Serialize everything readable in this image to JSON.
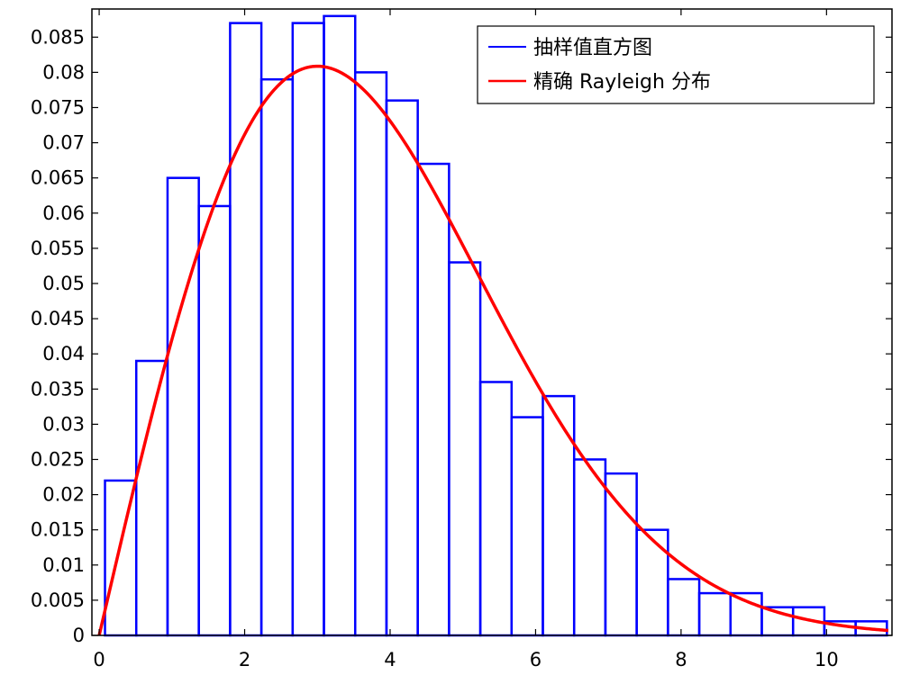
{
  "chart_data": {
    "type": "bar",
    "title": "",
    "xlabel": "",
    "ylabel": "",
    "xlim": [
      -0.1,
      10.9
    ],
    "ylim": [
      0,
      0.089
    ],
    "grid": false,
    "legend_position": "top-right",
    "x_ticks": [
      0,
      2,
      4,
      6,
      8,
      10
    ],
    "x_tick_labels": [
      "0",
      "2",
      "4",
      "6",
      "8",
      "10"
    ],
    "y_ticks": [
      0,
      0.005,
      0.01,
      0.015,
      0.02,
      0.025,
      0.03,
      0.035,
      0.04,
      0.045,
      0.05,
      0.055,
      0.06,
      0.065,
      0.07,
      0.075,
      0.08,
      0.085
    ],
    "y_tick_labels": [
      "0",
      "0.005",
      "0.01",
      "0.015",
      "0.02",
      "0.025",
      "0.03",
      "0.035",
      "0.04",
      "0.045",
      "0.05",
      "0.055",
      "0.06",
      "0.065",
      "0.07",
      "0.075",
      "0.08",
      "0.085"
    ],
    "series": [
      {
        "name": "抽样值直方图",
        "kind": "histogram",
        "color": "#0000ff",
        "bin_edges": [
          0.08,
          0.51,
          0.94,
          1.37,
          1.8,
          2.23,
          2.66,
          3.09,
          3.52,
          3.95,
          4.38,
          4.81,
          5.24,
          5.67,
          6.1,
          6.53,
          6.96,
          7.39,
          7.82,
          8.25,
          8.68,
          9.11,
          9.54,
          9.97,
          10.4,
          10.83
        ],
        "values": [
          0.022,
          0.039,
          0.065,
          0.061,
          0.087,
          0.079,
          0.087,
          0.088,
          0.08,
          0.076,
          0.067,
          0.053,
          0.036,
          0.031,
          0.034,
          0.025,
          0.023,
          0.015,
          0.008,
          0.006,
          0.006,
          0.004,
          0.004,
          0.002,
          0.002
        ]
      },
      {
        "name": "精确 Rayleigh 分布",
        "kind": "line",
        "color": "#ff0000",
        "distribution": "rayleigh",
        "sigma": 3.0,
        "scale": 0.4,
        "x_range": [
          0,
          10.85
        ]
      }
    ]
  }
}
